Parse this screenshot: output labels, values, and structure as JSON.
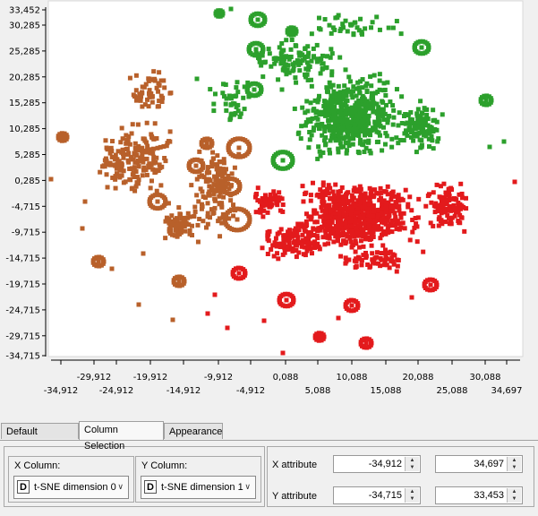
{
  "chart_data": {
    "type": "scatter",
    "xlim": [
      -34.912,
      34.697
    ],
    "ylim": [
      -34.715,
      33.453
    ],
    "y_tick_labels": [
      "33,452",
      "30,285",
      "25,285",
      "20,285",
      "15,285",
      "10,285",
      "5,285",
      "0,285",
      "-4,715",
      "-9,715",
      "-14,715",
      "-19,715",
      "-24,715",
      "-29,715",
      "-34,715"
    ],
    "x_tick_labels_upper": [
      "-29,912",
      "-19,912",
      "-9,912",
      "0,088",
      "10,088",
      "20,088",
      "30,088"
    ],
    "x_tick_labels_lower": [
      "-34,912",
      "-24,912",
      "-14,912",
      "-4,912",
      "5,088",
      "15,088",
      "25,088",
      "34,697"
    ],
    "series": [
      {
        "name": "green",
        "color": "#2ca02c"
      },
      {
        "name": "red",
        "color": "#e31a1c"
      },
      {
        "name": "brown",
        "color": "#b8602a"
      }
    ]
  },
  "tabs": [
    {
      "label": "Default Settings"
    },
    {
      "label": "Column Selection"
    },
    {
      "label": "Appearance"
    }
  ],
  "x_column": {
    "title": "X Column:",
    "type_icon": "D",
    "value": "t-SNE dimension 0"
  },
  "y_column": {
    "title": "Y Column:",
    "type_icon": "D",
    "value": "t-SNE dimension 1"
  },
  "x_attribute": {
    "label": "X attribute",
    "min": "-34,912",
    "max": "34,697"
  },
  "y_attribute": {
    "label": "Y attribute",
    "min": "-34,715",
    "max": "33,453"
  },
  "icons": {
    "spin_up": "up-arrow-icon",
    "spin_down": "down-arrow-icon",
    "dropdown": "chevron-down-icon"
  }
}
